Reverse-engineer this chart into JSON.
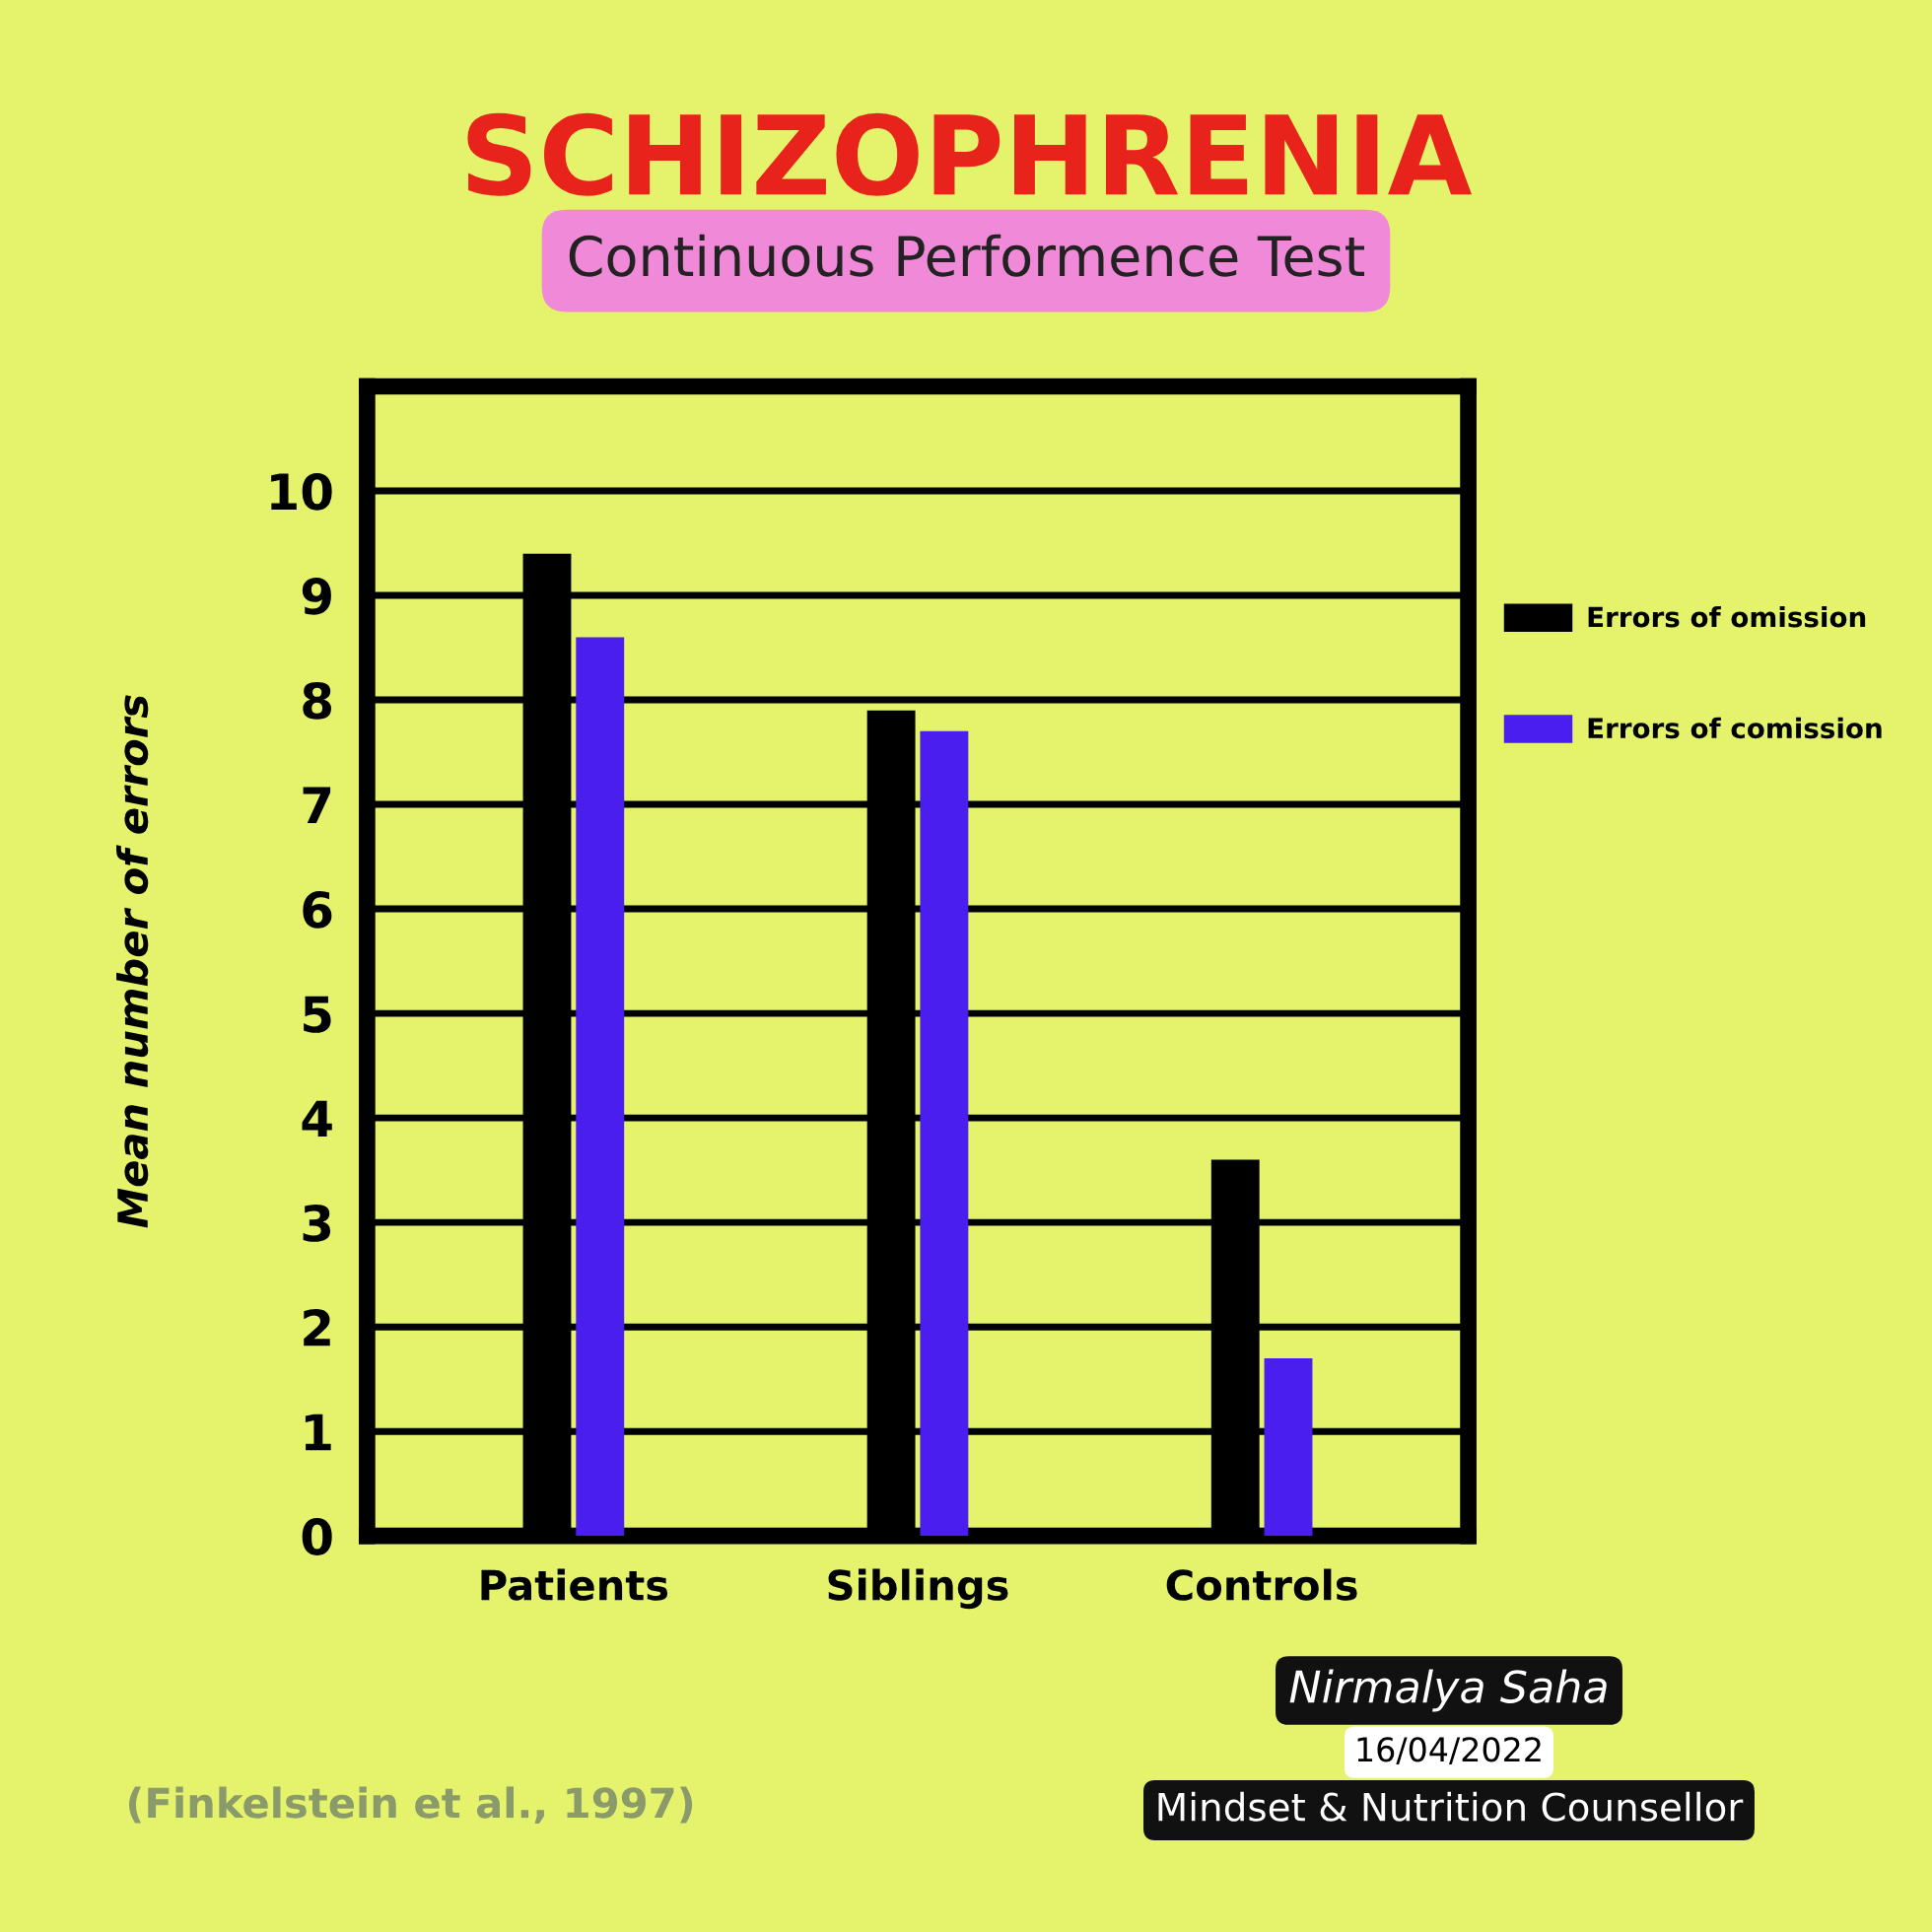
{
  "chart_data": {
    "type": "bar",
    "title": "SCHIZOPHRENIA",
    "subtitle": "Continuous Performence Test",
    "ylabel": "Mean number of errors",
    "categories": [
      "Patients",
      "Siblings",
      "Controls"
    ],
    "series": [
      {
        "name": "Errors of omission",
        "color": "#000000",
        "values": [
          9.4,
          7.9,
          3.6
        ]
      },
      {
        "name": "Errors of comission",
        "color": "#4b1ef0",
        "values": [
          8.6,
          7.7,
          1.7
        ]
      }
    ],
    "ylim": [
      0,
      11
    ],
    "yticks": [
      0,
      1,
      2,
      3,
      4,
      5,
      6,
      7,
      8,
      9,
      10
    ],
    "grid": "y",
    "legend": "right",
    "annotations": [
      "(Finkelstein et al., 1997)",
      "Nirmalya Saha",
      "16/04/2022",
      "Mindset & Nutrition Counsellor"
    ]
  }
}
